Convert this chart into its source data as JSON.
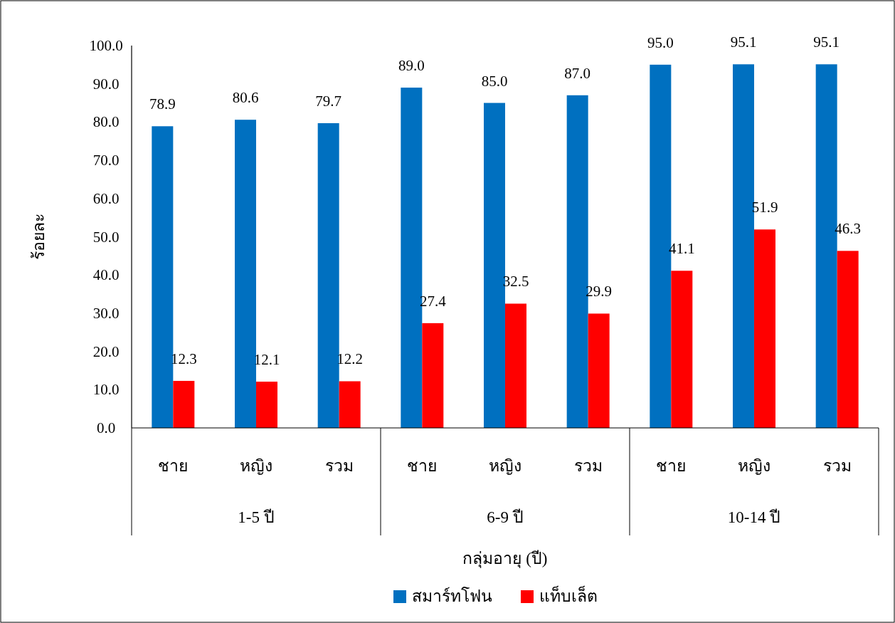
{
  "chart_data": {
    "type": "bar",
    "xlabel": "กลุ่มอายุ (ปี)",
    "ylabel": "ร้อยละ",
    "categories": [
      "ชาย",
      "หญิง",
      "รวม",
      "ชาย",
      "หญิง",
      "รวม",
      "ชาย",
      "หญิง",
      "รวม"
    ],
    "annotations": [
      "1-5 ปี",
      "6-9 ปี",
      "10-14 ปี"
    ],
    "series": [
      {
        "name": "สมาร์ทโฟน",
        "color": "#0070c0",
        "values": [
          78.9,
          80.6,
          79.7,
          89.0,
          85.0,
          87.0,
          95.0,
          95.1,
          95.1
        ],
        "value_labels": [
          "78.9",
          "80.6",
          "79.7",
          "89.0",
          "85.0",
          "87.0",
          "95.0",
          "95.1",
          "95.1"
        ]
      },
      {
        "name": "แท็บเล็ต",
        "color": "#ff0000",
        "values": [
          12.3,
          12.1,
          12.2,
          27.4,
          32.5,
          29.9,
          41.1,
          51.9,
          46.3
        ],
        "value_labels": [
          "12.3",
          "12.1",
          "12.2",
          "27.4",
          "32.5",
          "29.9",
          "41.1",
          "51.9",
          "46.3"
        ]
      }
    ],
    "ylim": [
      0,
      100
    ],
    "yticks": [
      {
        "value": 0,
        "label": "0.0"
      },
      {
        "value": 10,
        "label": "10.0"
      },
      {
        "value": 20,
        "label": "20.0"
      },
      {
        "value": 30,
        "label": "30.0"
      },
      {
        "value": 40,
        "label": "40.0"
      },
      {
        "value": 50,
        "label": "50.0"
      },
      {
        "value": 60,
        "label": "60.0"
      },
      {
        "value": 70,
        "label": "70.0"
      },
      {
        "value": 80,
        "label": "80.0"
      },
      {
        "value": 90,
        "label": "90.0"
      },
      {
        "value": 100,
        "label": "100.0"
      }
    ],
    "grid": false,
    "legend": "bottom"
  }
}
